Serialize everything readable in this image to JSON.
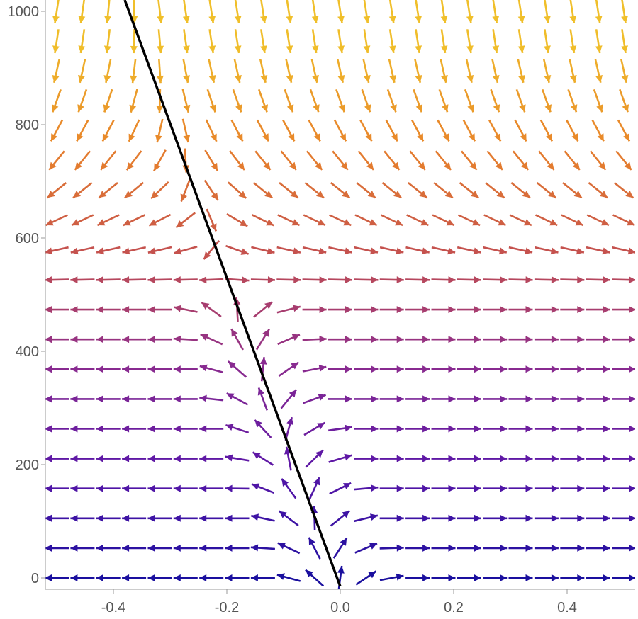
{
  "chart_data": {
    "type": "vector_field",
    "title": "",
    "xlabel": "",
    "ylabel": "",
    "xlim": [
      -0.52,
      0.52
    ],
    "ylim": [
      -20,
      1020
    ],
    "x_ticks": [
      "-0.4",
      "-0.2",
      "0.0",
      "0.2",
      "0.4"
    ],
    "x_tick_values": [
      -0.4,
      -0.2,
      0.0,
      0.2,
      0.4
    ],
    "y_ticks": [
      "0",
      "200",
      "400",
      "600",
      "800",
      "1000"
    ],
    "y_tick_values": [
      0,
      200,
      400,
      600,
      800,
      1000
    ],
    "grid": false,
    "legend": "none",
    "field": {
      "x_samples": 23,
      "y_samples": 20,
      "color_scheme": "Plasma (magnitude)",
      "colors": [
        "#1a0f9e",
        "#5a16a8",
        "#8b2b8e",
        "#c4504f",
        "#e8812a",
        "#f0bf2a"
      ]
    },
    "line": {
      "label": "",
      "color": "#000000",
      "points": [
        [
          0.0,
          -15
        ],
        [
          -0.38,
          1020
        ]
      ]
    }
  }
}
